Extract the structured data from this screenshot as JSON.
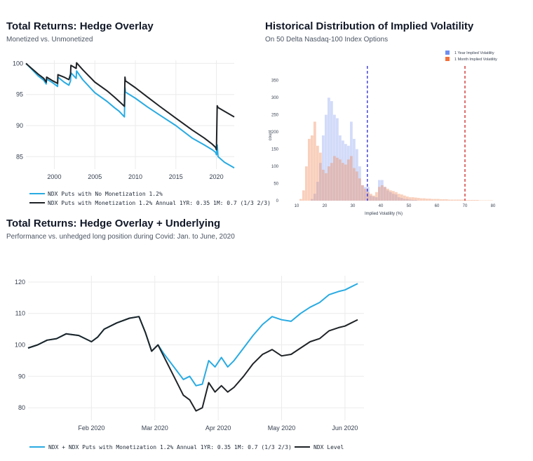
{
  "chart_data": [
    {
      "id": "hedge-overlay",
      "type": "line",
      "title": "Total Returns: Hedge Overlay",
      "subtitle": "Monetized vs. Unmonetized",
      "xlabel": "",
      "ylabel": "",
      "xlim": [
        1996.5,
        2022.2
      ],
      "ylim": [
        83,
        100.5
      ],
      "xticks": [
        2000,
        2005,
        2010,
        2015,
        2020
      ],
      "yticks": [
        85,
        90,
        95,
        100
      ],
      "grid": true,
      "series": [
        {
          "name": "NDX Puts with No Monetization 1.2%",
          "color": "#29abe2",
          "x": [
            1996.5,
            1997.2,
            1998.0,
            1998.7,
            1999.0,
            1999.05,
            1999.8,
            2000.4,
            2000.45,
            2001.2,
            2001.8,
            2002.0,
            2002.05,
            2002.7,
            2002.75,
            2003.5,
            2005.0,
            2006.5,
            2007.4,
            2008.0,
            2008.65,
            2008.72,
            2008.78,
            2010.0,
            2011.5,
            2013.0,
            2015.0,
            2017.0,
            2018.5,
            2019.5,
            2019.9,
            2020.0,
            2020.1,
            2020.2,
            2021.0,
            2022.2
          ],
          "y": [
            100.0,
            99.1,
            98.0,
            97.3,
            96.7,
            97.5,
            96.9,
            96.3,
            97.8,
            97.0,
            96.5,
            97.2,
            98.5,
            97.6,
            98.8,
            97.4,
            95.3,
            93.9,
            92.9,
            92.3,
            91.4,
            96.1,
            95.4,
            94.4,
            93.0,
            91.7,
            90.0,
            88.0,
            86.9,
            86.1,
            85.7,
            85.3,
            86.9,
            85.0,
            84.1,
            83.2
          ]
        },
        {
          "name": "NDX Puts with Monetization 1.2% Annual 1YR: 0.35 1M: 0.7 (1/3 2/3)",
          "color": "#1f2326",
          "x": [
            1996.5,
            1997.2,
            1998.0,
            1998.7,
            1999.0,
            1999.05,
            1999.8,
            2000.4,
            2000.45,
            2001.2,
            2001.8,
            2002.0,
            2002.05,
            2002.7,
            2002.75,
            2003.5,
            2005.0,
            2006.5,
            2007.4,
            2008.0,
            2008.65,
            2008.72,
            2008.78,
            2010.0,
            2011.5,
            2013.0,
            2015.0,
            2017.0,
            2018.5,
            2019.5,
            2019.9,
            2020.0,
            2020.1,
            2020.2,
            2021.0,
            2022.2
          ],
          "y": [
            100.0,
            99.2,
            98.3,
            97.6,
            97.0,
            97.8,
            97.2,
            96.8,
            98.2,
            97.8,
            97.4,
            98.3,
            99.7,
            99.2,
            100.1,
            99.0,
            97.0,
            95.6,
            94.6,
            93.9,
            93.1,
            97.8,
            97.2,
            96.1,
            94.6,
            93.1,
            91.2,
            89.3,
            88.0,
            87.0,
            86.5,
            86.1,
            93.2,
            92.9,
            92.3,
            91.4
          ]
        }
      ]
    },
    {
      "id": "implied-vol-distribution",
      "type": "bar",
      "title": "Historical Distribution of Implied Volatility",
      "subtitle": "On 50 Delta Nasdaq-100 Index Options",
      "xlabel": "Implied Volatility (%)",
      "ylabel": "count",
      "xlim": [
        6,
        86
      ],
      "ylim": [
        0,
        380
      ],
      "xticks": [
        10,
        20,
        30,
        40,
        50,
        60,
        70,
        80
      ],
      "yticks": [
        0,
        50,
        100,
        150,
        200,
        250,
        300,
        350
      ],
      "bin_width": 1,
      "bin_start": 10,
      "reference_lines": [
        {
          "x": 35.2,
          "color": "#2b2bd6",
          "style": "dashed"
        },
        {
          "x": 70,
          "color": "#cc2222",
          "style": "dashed"
        }
      ],
      "series": [
        {
          "name": "1 Year Implied Volatility",
          "color": "#8ea5f0",
          "values": [
            0,
            0,
            0,
            0,
            0,
            5,
            20,
            55,
            110,
            190,
            250,
            300,
            290,
            250,
            240,
            190,
            175,
            165,
            160,
            230,
            180,
            150,
            100,
            45,
            40,
            40,
            15,
            12,
            10,
            60,
            60,
            40,
            30,
            25,
            20,
            18,
            10,
            8,
            5,
            5,
            3,
            2,
            2,
            0,
            0,
            0,
            0,
            0,
            0,
            0,
            0,
            0,
            0,
            0,
            0,
            0,
            0,
            0,
            0,
            0,
            0,
            0,
            0,
            0,
            0,
            0,
            0,
            0,
            0,
            0
          ]
        },
        {
          "name": "1 Month Implied Volatility",
          "color": "#f08a5a",
          "values": [
            0,
            5,
            30,
            100,
            180,
            190,
            230,
            160,
            140,
            90,
            80,
            100,
            110,
            130,
            125,
            120,
            110,
            105,
            120,
            130,
            95,
            85,
            65,
            45,
            35,
            25,
            20,
            15,
            25,
            40,
            45,
            40,
            35,
            30,
            28,
            25,
            20,
            18,
            15,
            12,
            10,
            10,
            9,
            8,
            7,
            7,
            6,
            6,
            5,
            5,
            5,
            4,
            4,
            4,
            3,
            3,
            3,
            3,
            3,
            3,
            2,
            2,
            2,
            2,
            2,
            1,
            1,
            1,
            1,
            1
          ]
        }
      ]
    },
    {
      "id": "hedge-overlay-underlying",
      "type": "line",
      "title": "Total Returns: Hedge Overlay + Underlying",
      "subtitle": "Performance vs. unhedged long position during Covid: Jan. to June, 2020",
      "xlabel": "",
      "ylabel": "",
      "xlim": [
        0,
        5.3
      ],
      "ylim": [
        76,
        122
      ],
      "xticks": [
        1,
        2,
        3,
        4,
        5
      ],
      "xticklabels": [
        "Feb 2020",
        "Mar 2020",
        "Apr 2020",
        "May 2020",
        "Jun 2020"
      ],
      "yticks": [
        80,
        90,
        100,
        110,
        120
      ],
      "grid": true,
      "series": [
        {
          "name": "NDX + NDX Puts with Monetization 1.2% Annual 1YR: 0.35 1M: 0.7 (1/3 2/3)",
          "color": "#29abe2",
          "x": [
            0,
            0.15,
            0.3,
            0.45,
            0.6,
            0.8,
            1.0,
            1.1,
            1.2,
            1.4,
            1.6,
            1.75,
            1.85,
            1.95,
            2.05,
            2.15,
            2.3,
            2.45,
            2.55,
            2.65,
            2.75,
            2.85,
            2.95,
            3.05,
            3.15,
            3.25,
            3.4,
            3.55,
            3.7,
            3.85,
            4.0,
            4.15,
            4.3,
            4.45,
            4.6,
            4.75,
            4.9,
            5.0,
            5.1,
            5.2
          ],
          "y": [
            99,
            100,
            101.5,
            102,
            103.5,
            103,
            101,
            102.5,
            105,
            107,
            108.5,
            109,
            104,
            98,
            100,
            97,
            93,
            89,
            90,
            87,
            87.5,
            95,
            93,
            96,
            93,
            95,
            99,
            103,
            106.5,
            109,
            108,
            107.5,
            110,
            112,
            113.5,
            116,
            117,
            117.5,
            118.5,
            119.5
          ]
        },
        {
          "name": "NDX Level",
          "color": "#1f2326",
          "x": [
            0,
            0.15,
            0.3,
            0.45,
            0.6,
            0.8,
            1.0,
            1.1,
            1.2,
            1.4,
            1.6,
            1.75,
            1.85,
            1.95,
            2.05,
            2.15,
            2.3,
            2.45,
            2.55,
            2.65,
            2.75,
            2.85,
            2.95,
            3.05,
            3.15,
            3.25,
            3.4,
            3.55,
            3.7,
            3.85,
            4.0,
            4.15,
            4.3,
            4.45,
            4.6,
            4.75,
            4.9,
            5.0,
            5.1,
            5.2
          ],
          "y": [
            99,
            100,
            101.5,
            102,
            103.5,
            103,
            101,
            102.5,
            105,
            107,
            108.5,
            109,
            104,
            98,
            100,
            96,
            90,
            84,
            82.5,
            79,
            80,
            88,
            85,
            87,
            85,
            86.5,
            90,
            94,
            97,
            98.5,
            96.5,
            97,
            99,
            101,
            102,
            104.5,
            105.5,
            106,
            107,
            108
          ]
        }
      ]
    }
  ]
}
